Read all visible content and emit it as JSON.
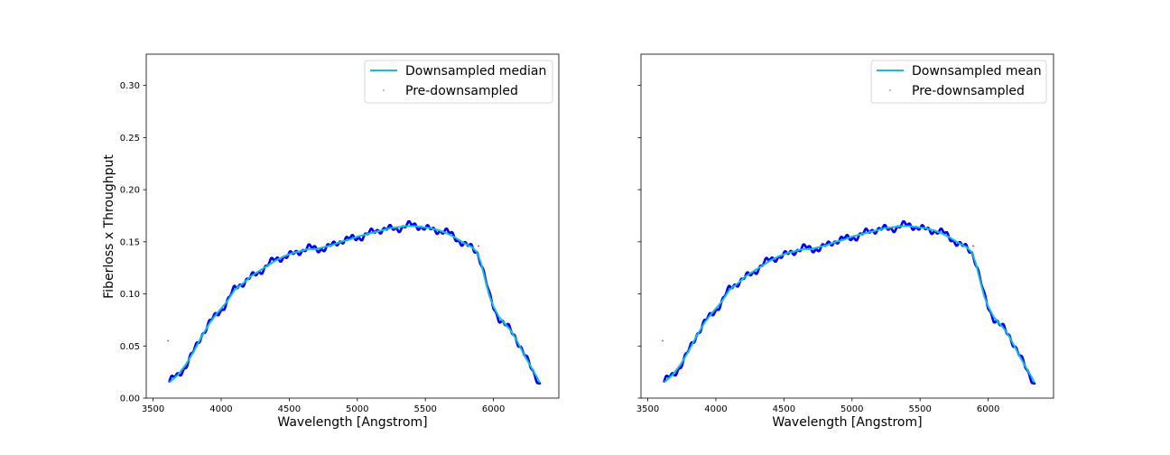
{
  "figure": {
    "background": "#ffffff",
    "shared_y": true
  },
  "chart_data": [
    {
      "type": "line",
      "title": "",
      "xlabel": "Wavelength [Angstrom]",
      "ylabel": "Fiberloss x Throughput",
      "xlim": [
        3450,
        6480
      ],
      "ylim": [
        0.0,
        0.33
      ],
      "xticks": [
        3500,
        4000,
        4500,
        5000,
        5500,
        6000
      ],
      "xtick_labels": [
        "3500",
        "4000",
        "4500",
        "5000",
        "5500",
        "6000"
      ],
      "yticks": [
        0.0,
        0.05,
        0.1,
        0.15,
        0.2,
        0.25,
        0.3
      ],
      "ytick_labels": [
        "0.00",
        "0.05",
        "0.10",
        "0.15",
        "0.20",
        "0.25",
        "0.30"
      ],
      "show_ytick_labels": true,
      "grid": false,
      "legend_position": "upper-right",
      "series": [
        {
          "name": "Downsampled median",
          "kind": "line",
          "color": "#17becf",
          "x": [
            3620,
            3680,
            3740,
            3800,
            3860,
            3920,
            3980,
            4040,
            4100,
            4160,
            4220,
            4280,
            4340,
            4400,
            4460,
            4520,
            4580,
            4640,
            4700,
            4760,
            4820,
            4880,
            4940,
            5000,
            5060,
            5120,
            5180,
            5240,
            5300,
            5360,
            5420,
            5480,
            5540,
            5600,
            5660,
            5720,
            5780,
            5840,
            5880,
            5910,
            5940,
            5970,
            6000,
            6040,
            6080,
            6120,
            6160,
            6200,
            6240,
            6280,
            6320,
            6340
          ],
          "y": [
            0.015,
            0.022,
            0.032,
            0.045,
            0.06,
            0.073,
            0.083,
            0.092,
            0.104,
            0.11,
            0.117,
            0.122,
            0.127,
            0.132,
            0.136,
            0.139,
            0.141,
            0.143,
            0.143,
            0.145,
            0.147,
            0.15,
            0.152,
            0.155,
            0.157,
            0.159,
            0.161,
            0.163,
            0.164,
            0.165,
            0.165,
            0.164,
            0.163,
            0.161,
            0.158,
            0.154,
            0.149,
            0.145,
            0.14,
            0.129,
            0.113,
            0.098,
            0.088,
            0.078,
            0.072,
            0.066,
            0.058,
            0.048,
            0.038,
            0.029,
            0.02,
            0.015
          ]
        },
        {
          "name": "Pre-downsampled",
          "kind": "points",
          "color": "#0000ff",
          "outlier_color": "#d62728",
          "outliers": [
            {
              "x": 3610,
              "y": 0.055
            },
            {
              "x": 5890,
              "y": 0.146
            }
          ]
        }
      ]
    },
    {
      "type": "line",
      "title": "",
      "xlabel": "Wavelength [Angstrom]",
      "ylabel": "",
      "xlim": [
        3450,
        6480
      ],
      "ylim": [
        0.0,
        0.33
      ],
      "xticks": [
        3500,
        4000,
        4500,
        5000,
        5500,
        6000
      ],
      "xtick_labels": [
        "3500",
        "4000",
        "4500",
        "5000",
        "5500",
        "6000"
      ],
      "yticks": [
        0.0,
        0.05,
        0.1,
        0.15,
        0.2,
        0.25,
        0.3
      ],
      "ytick_labels": [
        "",
        "",
        "",
        "",
        "",
        "",
        ""
      ],
      "show_ytick_labels": false,
      "grid": false,
      "legend_position": "upper-right",
      "series": [
        {
          "name": "Downsampled mean",
          "kind": "line",
          "color": "#17becf",
          "x": [
            3620,
            3680,
            3740,
            3800,
            3860,
            3920,
            3980,
            4040,
            4100,
            4160,
            4220,
            4280,
            4340,
            4400,
            4460,
            4520,
            4580,
            4640,
            4700,
            4760,
            4820,
            4880,
            4940,
            5000,
            5060,
            5120,
            5180,
            5240,
            5300,
            5360,
            5420,
            5480,
            5540,
            5600,
            5660,
            5720,
            5780,
            5840,
            5880,
            5910,
            5940,
            5970,
            6000,
            6040,
            6080,
            6120,
            6160,
            6200,
            6240,
            6280,
            6320,
            6340
          ],
          "y": [
            0.015,
            0.022,
            0.032,
            0.045,
            0.06,
            0.073,
            0.083,
            0.092,
            0.104,
            0.11,
            0.117,
            0.122,
            0.127,
            0.132,
            0.136,
            0.139,
            0.141,
            0.143,
            0.143,
            0.145,
            0.147,
            0.15,
            0.152,
            0.155,
            0.157,
            0.159,
            0.161,
            0.163,
            0.164,
            0.165,
            0.165,
            0.164,
            0.163,
            0.161,
            0.158,
            0.154,
            0.149,
            0.145,
            0.14,
            0.129,
            0.113,
            0.098,
            0.088,
            0.078,
            0.072,
            0.066,
            0.058,
            0.048,
            0.038,
            0.029,
            0.02,
            0.015
          ]
        },
        {
          "name": "Pre-downsampled",
          "kind": "points",
          "color": "#0000ff",
          "outlier_color": "#d62728",
          "outliers": [
            {
              "x": 3610,
              "y": 0.055
            },
            {
              "x": 5890,
              "y": 0.146
            }
          ]
        }
      ]
    }
  ]
}
